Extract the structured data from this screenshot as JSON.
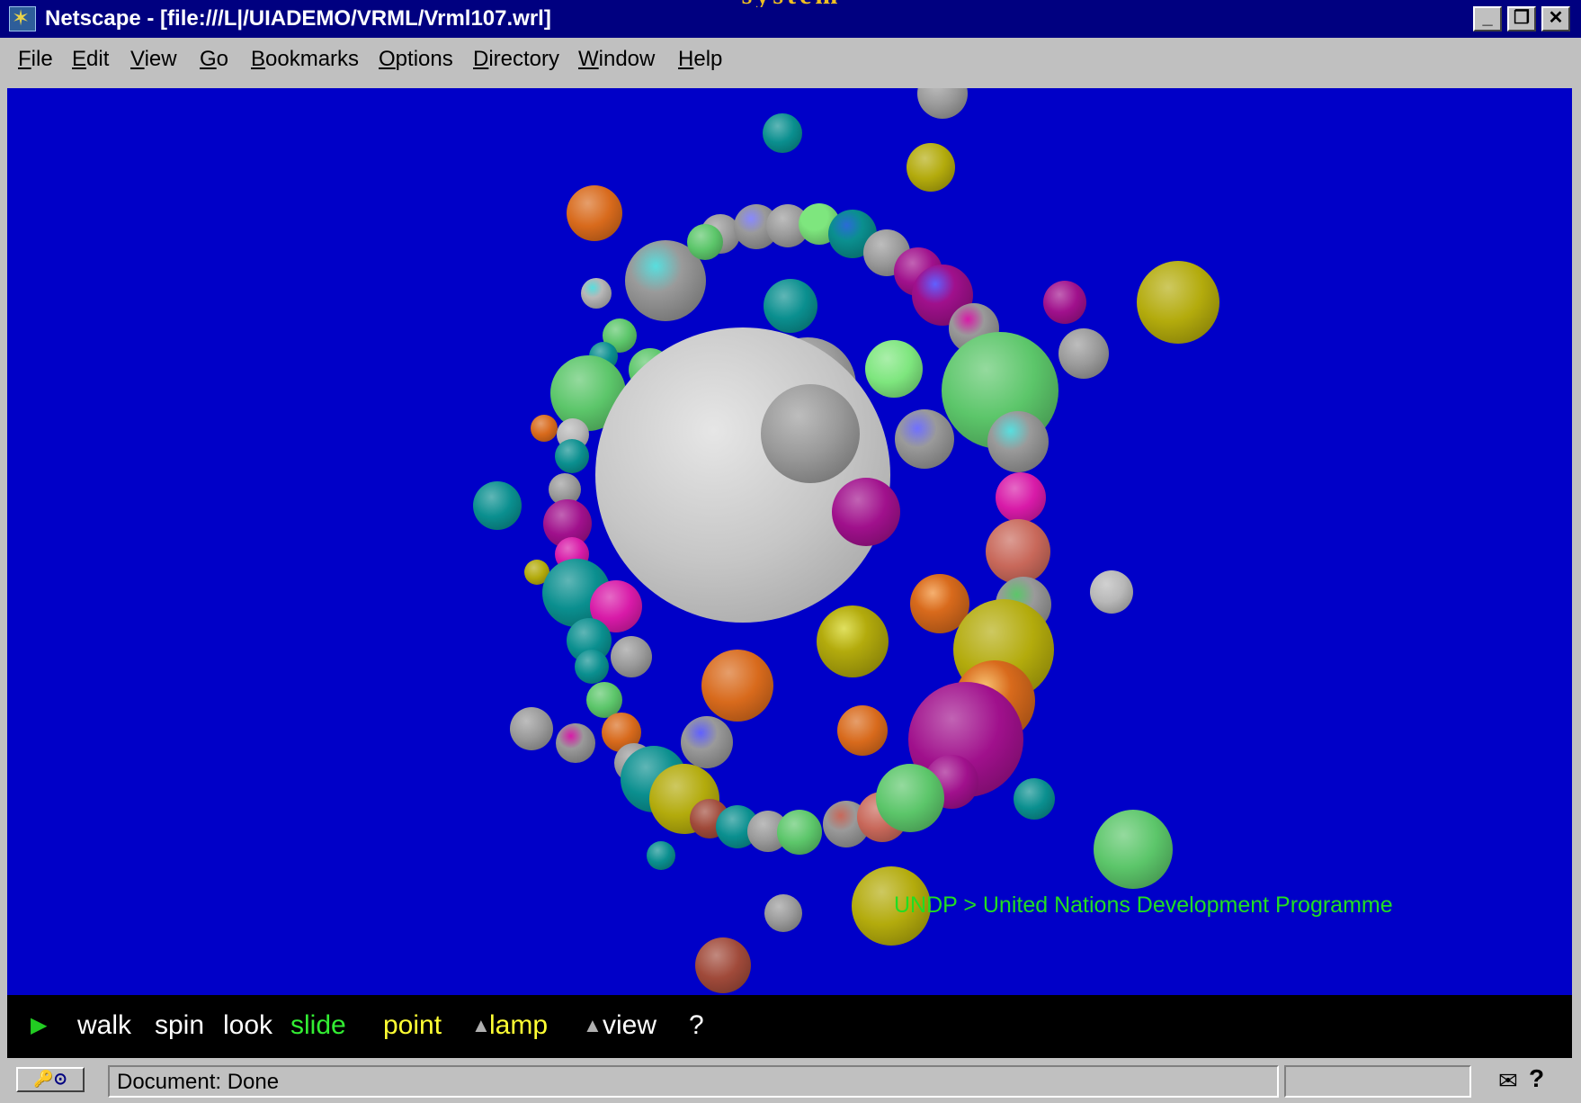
{
  "heading_fragment": "system",
  "window": {
    "title": "Netscape - [file:///L|/UIADEMO/VRML/Vrml107.wrl]",
    "app_icon": "netscape-logo-icon",
    "controls": [
      "minimize-icon",
      "restore-icon",
      "close-icon"
    ]
  },
  "menu": {
    "items": [
      {
        "label": "File",
        "accel": "F",
        "rest": "ile"
      },
      {
        "label": "Edit",
        "accel": "E",
        "rest": "dit"
      },
      {
        "label": "View",
        "accel": "V",
        "rest": "iew"
      },
      {
        "label": "Go",
        "accel": "G",
        "rest": "o"
      },
      {
        "label": "Bookmarks",
        "accel": "B",
        "rest": "ookmarks"
      },
      {
        "label": "Options",
        "accel": "O",
        "rest": "ptions"
      },
      {
        "label": "Directory",
        "accel": "D",
        "rest": "irectory"
      },
      {
        "label": "Window",
        "accel": "W",
        "rest": "indow"
      },
      {
        "label": "Help",
        "accel": "H",
        "rest": "elp"
      }
    ]
  },
  "scene": {
    "background": "#0000c8",
    "hover_label": "UNDP > United Nations Development Programme",
    "hover_label_color": "#22dd22"
  },
  "navigation": {
    "play_icon": "play-triangle-icon",
    "items": [
      {
        "label": "walk",
        "color": "#ffffff"
      },
      {
        "label": "spin",
        "color": "#ffffff"
      },
      {
        "label": "look",
        "color": "#ffffff"
      },
      {
        "label": "slide",
        "color": "#33ee33"
      },
      {
        "label": "point",
        "color": "#ffff33"
      },
      {
        "label": "lamp",
        "color": "#ffff33"
      },
      {
        "label": "view",
        "color": "#ffffff"
      },
      {
        "label": "?",
        "color": "#ffffff"
      }
    ]
  },
  "status": {
    "icon": "security-key-icon",
    "text": "Document: Done",
    "mail_icon": "mail-icon",
    "help_icon": "question-icon"
  }
}
